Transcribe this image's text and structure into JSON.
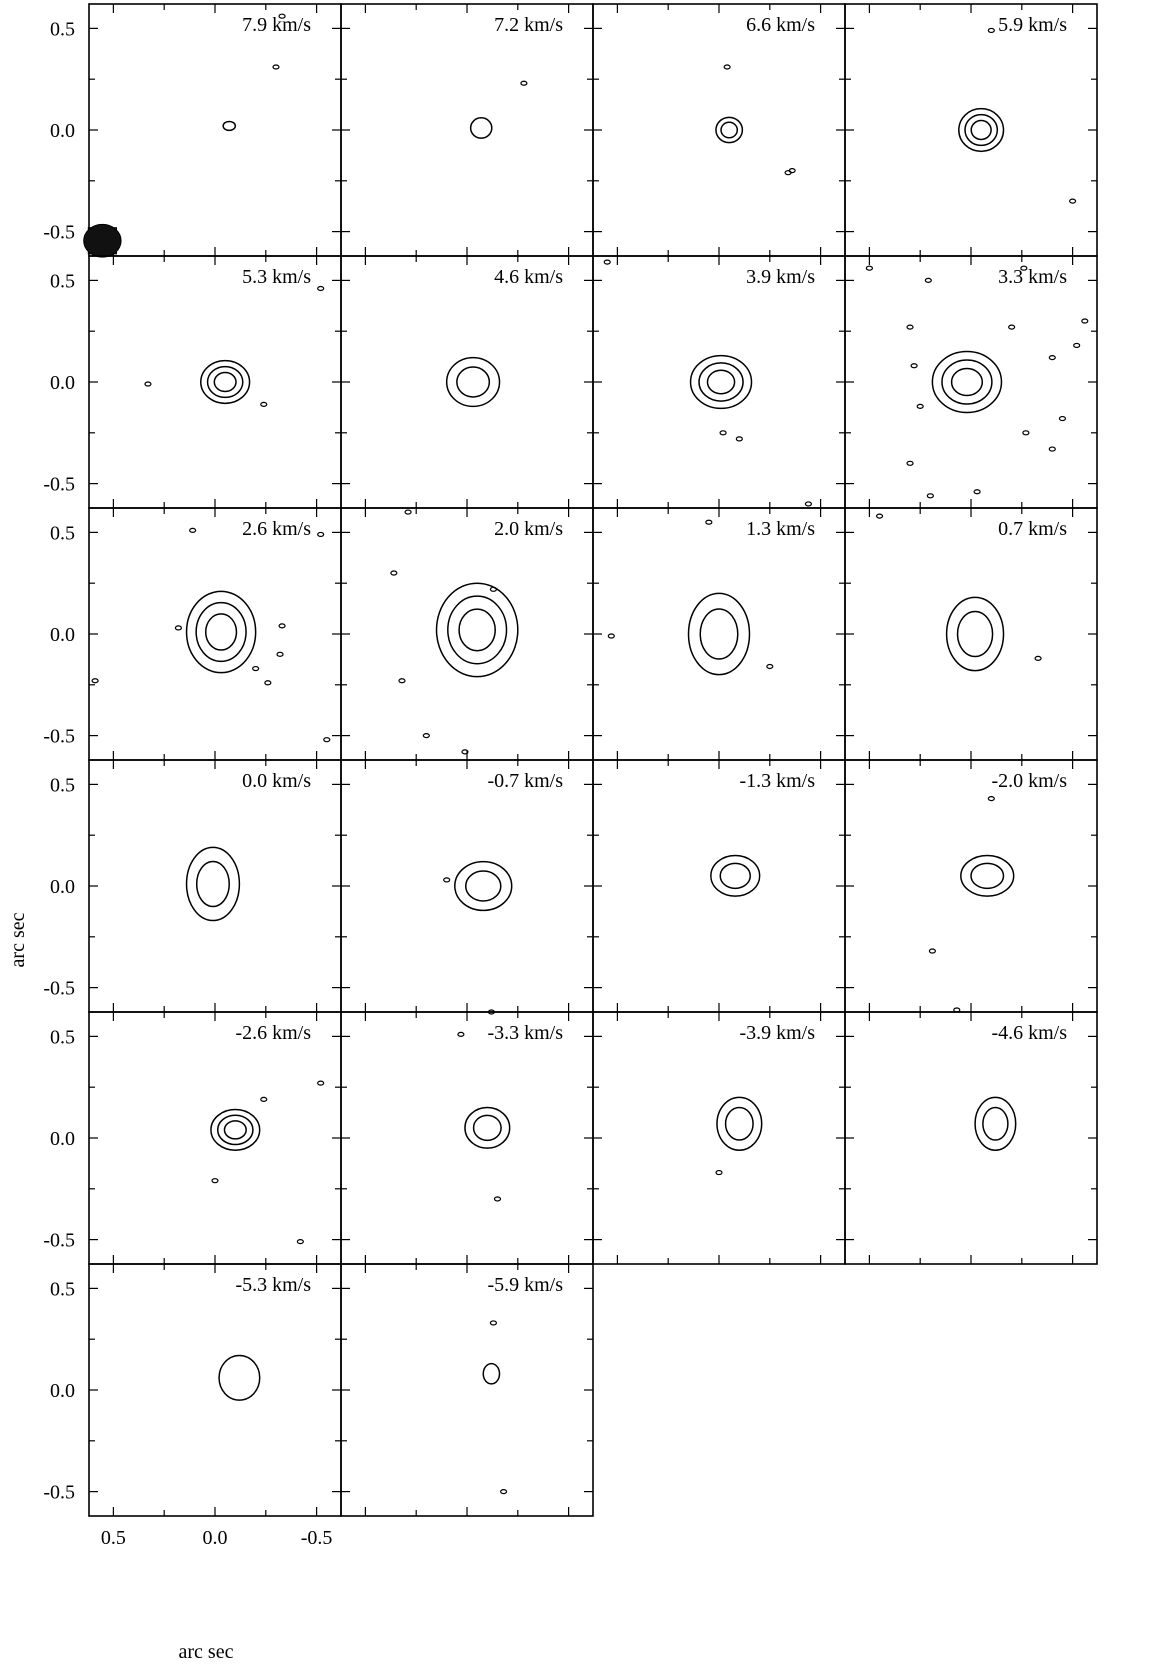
{
  "chart_data": {
    "type": "contour",
    "description_units": "channel maps; offsets in arc sec",
    "xlabel": "arc sec",
    "ylabel": "arc sec",
    "x_ticks": [
      "0.5",
      "0.0",
      "-0.5"
    ],
    "y_ticks": [
      "0.5",
      "0.0",
      "-0.5",
      "0.5",
      "0.0",
      "-0.5",
      "0.5",
      "0.0",
      "-0.5",
      "0.5",
      "0.0",
      "-0.5",
      "0.5",
      "0.0",
      "-0.5",
      "0.5",
      "0.0",
      "-0.5"
    ],
    "xlim": [
      0.62,
      -0.62
    ],
    "ylim": [
      -0.62,
      0.62
    ],
    "grid": false,
    "panels": [
      {
        "label": "7.9 km/s",
        "sources": [
          {
            "x": -0.07,
            "y": 0.02,
            "rx": 0.03,
            "ry": 0.022,
            "levels": 1
          }
        ],
        "specks": [
          [
            -0.3,
            0.31
          ],
          [
            -0.33,
            0.56
          ]
        ]
      },
      {
        "label": "7.2 km/s",
        "sources": [
          {
            "x": -0.07,
            "y": 0.01,
            "rx": 0.052,
            "ry": 0.05,
            "levels": 1
          }
        ],
        "specks": [
          [
            -0.28,
            0.23
          ]
        ]
      },
      {
        "label": "6.6 km/s",
        "sources": [
          {
            "x": -0.05,
            "y": 0.0,
            "rx": 0.065,
            "ry": 0.062,
            "levels": 2
          }
        ],
        "specks": [
          [
            -0.04,
            0.31
          ],
          [
            -0.36,
            -0.2
          ],
          [
            -0.34,
            -0.21
          ]
        ]
      },
      {
        "label": "5.9 km/s",
        "sources": [
          {
            "x": -0.05,
            "y": 0.0,
            "rx": 0.11,
            "ry": 0.105,
            "levels": 3
          }
        ],
        "specks": [
          [
            -0.5,
            -0.35
          ],
          [
            -0.1,
            0.49
          ]
        ]
      },
      {
        "label": "5.3 km/s",
        "sources": [
          {
            "x": -0.05,
            "y": 0.0,
            "rx": 0.12,
            "ry": 0.105,
            "levels": 3
          }
        ],
        "specks": [
          [
            -0.52,
            0.46
          ],
          [
            0.33,
            -0.01
          ],
          [
            -0.24,
            -0.11
          ]
        ]
      },
      {
        "label": "4.6 km/s",
        "sources": [
          {
            "x": -0.03,
            "y": 0.0,
            "rx": 0.13,
            "ry": 0.12,
            "levels": 2
          }
        ],
        "specks": []
      },
      {
        "label": "3.9 km/s",
        "sources": [
          {
            "x": -0.01,
            "y": 0.0,
            "rx": 0.15,
            "ry": 0.13,
            "levels": 3
          }
        ],
        "specks": [
          [
            -0.02,
            -0.25
          ],
          [
            -0.1,
            -0.28
          ],
          [
            -0.44,
            -0.6
          ],
          [
            0.55,
            0.59
          ]
        ]
      },
      {
        "label": "3.3 km/s",
        "sources": [
          {
            "x": 0.02,
            "y": 0.0,
            "rx": 0.17,
            "ry": 0.15,
            "levels": 3
          }
        ],
        "specks": [
          [
            -0.2,
            0.27
          ],
          [
            -0.4,
            0.12
          ],
          [
            -0.52,
            0.18
          ],
          [
            -0.56,
            0.3
          ],
          [
            0.3,
            0.27
          ],
          [
            0.28,
            0.08
          ],
          [
            0.25,
            -0.12
          ],
          [
            0.3,
            -0.4
          ],
          [
            0.2,
            -0.56
          ],
          [
            -0.45,
            -0.18
          ],
          [
            -0.27,
            -0.25
          ],
          [
            -0.4,
            -0.33
          ],
          [
            -0.03,
            -0.54
          ],
          [
            0.21,
            0.5
          ],
          [
            0.5,
            0.56
          ],
          [
            -0.26,
            0.56
          ]
        ]
      },
      {
        "label": "2.6 km/s",
        "sources": [
          {
            "x": -0.03,
            "y": 0.01,
            "rx": 0.17,
            "ry": 0.2,
            "levels": 3
          }
        ],
        "specks": [
          [
            -0.33,
            0.04
          ],
          [
            -0.32,
            -0.1
          ],
          [
            -0.2,
            -0.17
          ],
          [
            -0.26,
            -0.24
          ],
          [
            -0.55,
            -0.52
          ],
          [
            0.59,
            -0.23
          ],
          [
            -0.52,
            0.49
          ],
          [
            0.11,
            0.51
          ],
          [
            0.18,
            0.03
          ]
        ]
      },
      {
        "label": "2.0 km/s",
        "sources": [
          {
            "x": -0.05,
            "y": 0.02,
            "rx": 0.2,
            "ry": 0.23,
            "levels": 3
          }
        ],
        "specks": [
          [
            -0.13,
            0.22
          ],
          [
            0.36,
            0.3
          ],
          [
            0.32,
            -0.23
          ],
          [
            0.2,
            -0.5
          ],
          [
            0.01,
            -0.58
          ],
          [
            0.29,
            0.6
          ]
        ]
      },
      {
        "label": "1.3 km/s",
        "sources": [
          {
            "x": 0.0,
            "y": 0.0,
            "rx": 0.15,
            "ry": 0.2,
            "levels": 2
          }
        ],
        "specks": [
          [
            -0.25,
            -0.16
          ],
          [
            0.53,
            -0.01
          ],
          [
            0.05,
            0.55
          ]
        ]
      },
      {
        "label": "0.7 km/s",
        "sources": [
          {
            "x": -0.02,
            "y": 0.0,
            "rx": 0.14,
            "ry": 0.18,
            "levels": 2
          }
        ],
        "specks": [
          [
            -0.33,
            -0.12
          ],
          [
            0.45,
            0.58
          ]
        ]
      },
      {
        "label": "0.0 km/s",
        "sources": [
          {
            "x": 0.01,
            "y": 0.01,
            "rx": 0.13,
            "ry": 0.18,
            "levels": 2
          }
        ],
        "specks": []
      },
      {
        "label": "-0.7 km/s",
        "sources": [
          {
            "x": -0.08,
            "y": 0.0,
            "rx": 0.14,
            "ry": 0.12,
            "levels": 2
          }
        ],
        "specks": [
          [
            0.1,
            0.03
          ]
        ]
      },
      {
        "label": "-1.3 km/s",
        "sources": [
          {
            "x": -0.08,
            "y": 0.05,
            "rx": 0.12,
            "ry": 0.1,
            "levels": 2
          }
        ],
        "specks": []
      },
      {
        "label": "-2.0 km/s",
        "sources": [
          {
            "x": -0.08,
            "y": 0.05,
            "rx": 0.13,
            "ry": 0.1,
            "levels": 2
          }
        ],
        "specks": [
          [
            -0.1,
            0.43
          ],
          [
            0.19,
            -0.32
          ],
          [
            0.07,
            -0.61
          ]
        ]
      },
      {
        "label": "-2.6 km/s",
        "sources": [
          {
            "x": -0.1,
            "y": 0.04,
            "rx": 0.12,
            "ry": 0.1,
            "levels": 3
          }
        ],
        "specks": [
          [
            -0.24,
            0.19
          ],
          [
            -0.52,
            0.27
          ],
          [
            0.0,
            -0.21
          ],
          [
            -0.42,
            -0.51
          ]
        ]
      },
      {
        "label": "-3.3 km/s",
        "sources": [
          {
            "x": -0.1,
            "y": 0.05,
            "rx": 0.11,
            "ry": 0.1,
            "levels": 2
          }
        ],
        "specks": [
          [
            -0.15,
            -0.3
          ],
          [
            0.03,
            0.51
          ],
          [
            -0.12,
            0.62
          ]
        ]
      },
      {
        "label": "-3.9 km/s",
        "sources": [
          {
            "x": -0.1,
            "y": 0.07,
            "rx": 0.11,
            "ry": 0.13,
            "levels": 2
          }
        ],
        "specks": [
          [
            0.0,
            -0.17
          ]
        ]
      },
      {
        "label": "-4.6 km/s",
        "sources": [
          {
            "x": -0.12,
            "y": 0.07,
            "rx": 0.1,
            "ry": 0.13,
            "levels": 2
          }
        ],
        "specks": []
      },
      {
        "label": "-5.3 km/s",
        "sources": [
          {
            "x": -0.12,
            "y": 0.06,
            "rx": 0.1,
            "ry": 0.11,
            "levels": 1
          }
        ],
        "specks": []
      },
      {
        "label": "-5.9 km/s",
        "sources": [
          {
            "x": -0.12,
            "y": 0.08,
            "rx": 0.04,
            "ry": 0.05,
            "levels": 1
          }
        ],
        "specks": [
          [
            -0.13,
            0.33
          ],
          [
            -0.18,
            -0.5
          ]
        ]
      }
    ],
    "beam": {
      "major": 0.08,
      "minor": 0.07
    }
  }
}
